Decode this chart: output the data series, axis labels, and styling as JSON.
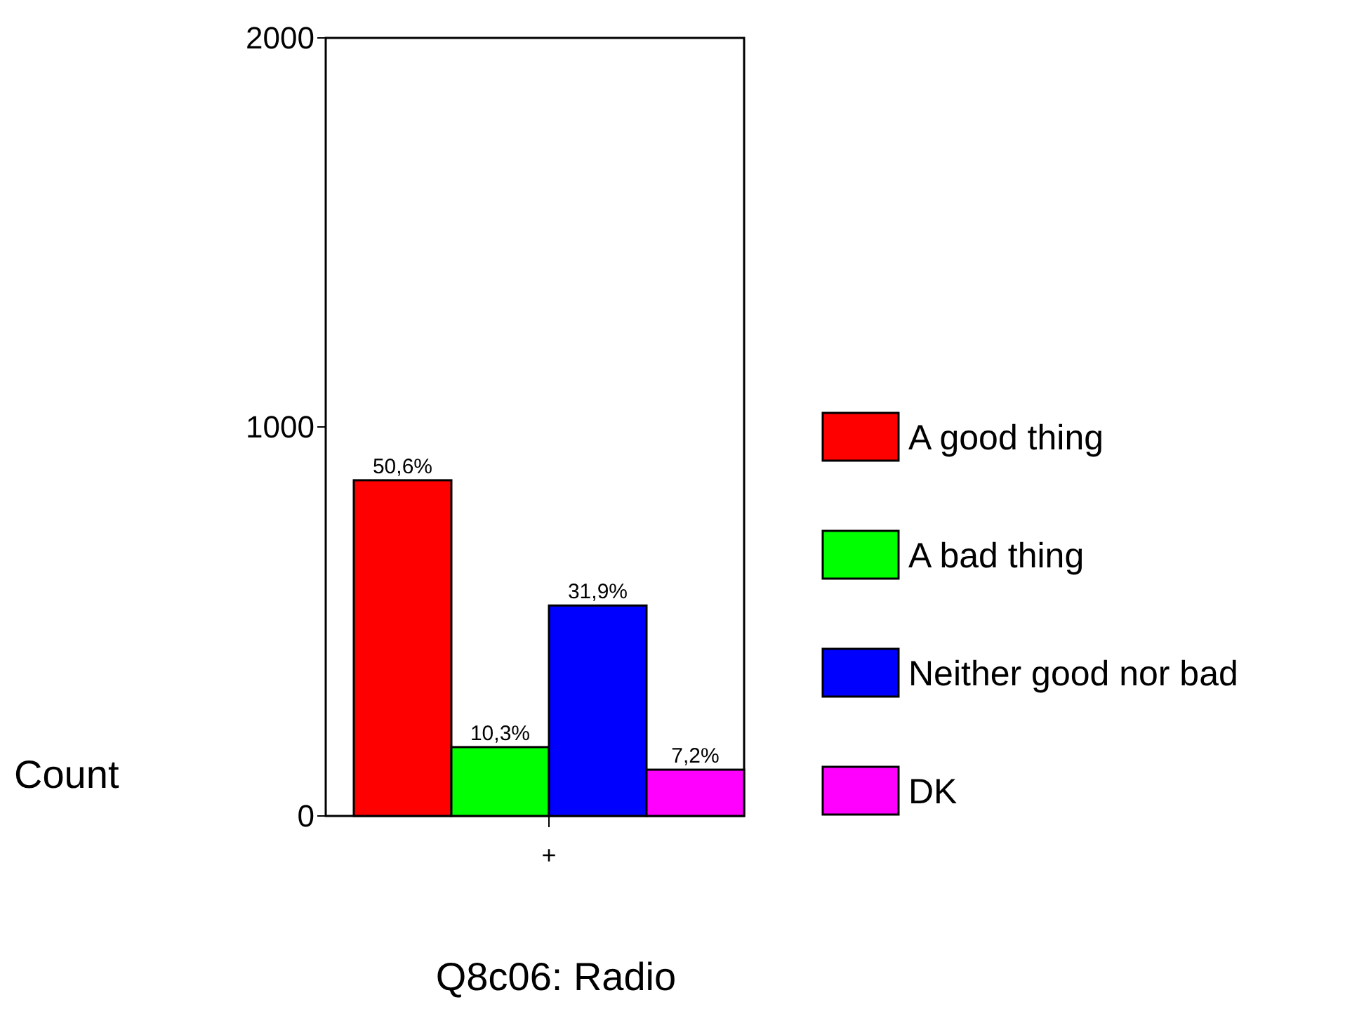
{
  "chart_data": {
    "type": "bar",
    "xlabel": "Q8c06: Radio",
    "ylabel": "Count",
    "categories": [
      null,
      null,
      null,
      null
    ],
    "stacked": true,
    "series": [
      {
        "name": "A good thing",
        "color": "#ff0000",
        "values": [
          863,
          null,
          null,
          null
        ]
      },
      {
        "name": "A bad thing",
        "color": "#00ff00",
        "values": [
          null,
          177,
          null,
          null
        ]
      },
      {
        "name": "Neither good nor bad",
        "color": "#0000ff",
        "values": [
          null,
          null,
          541,
          null
        ]
      },
      {
        "name": "DK",
        "color": "#ff00ff",
        "values": [
          null,
          null,
          null,
          119
        ]
      }
    ],
    "annotations": [
      "50,6%",
      "10,3%",
      "31,9%",
      "7,2%",
      "+"
    ],
    "ylim": [
      0,
      2000
    ],
    "yticks": [
      0,
      1000,
      2000
    ],
    "grid": false,
    "legend": "right"
  }
}
